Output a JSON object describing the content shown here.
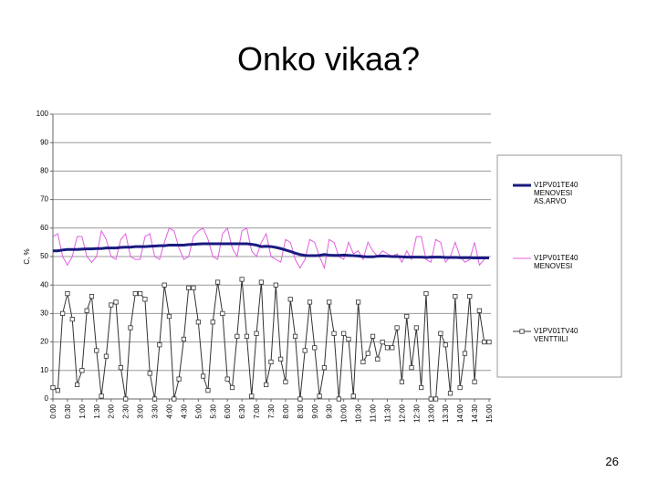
{
  "title": "Onko vikaa?",
  "page_number": "26",
  "chart_data": {
    "type": "line",
    "ylabel": "C, %",
    "ylim": [
      0,
      100
    ],
    "yticks": [
      0,
      10,
      20,
      30,
      40,
      50,
      60,
      70,
      80,
      90,
      100
    ],
    "grid": true,
    "categories": [
      "0:00",
      null,
      null,
      "0:30",
      null,
      null,
      "1:00",
      null,
      null,
      "1:30",
      null,
      null,
      "2:00",
      null,
      null,
      "2:30",
      null,
      null,
      "3:00",
      null,
      null,
      "3:30",
      null,
      null,
      "4:00",
      null,
      null,
      "4:30",
      null,
      null,
      "5:00",
      null,
      null,
      "5:30",
      null,
      null,
      "6:00",
      null,
      null,
      "6:30",
      null,
      null,
      "7:00",
      null,
      null,
      "7:30",
      null,
      null,
      "8:00",
      null,
      null,
      "8:30",
      null,
      null,
      "9:00",
      null,
      null,
      "9:30",
      null,
      null,
      "10:00",
      null,
      null,
      "10:30",
      null,
      null,
      "11:00",
      null,
      null,
      "11:30",
      null,
      null,
      "12:00",
      null,
      null,
      "12:30",
      null,
      null,
      "13:00",
      null,
      null,
      "13:30",
      null,
      null,
      "14:00",
      null,
      null,
      "14:30",
      null,
      null,
      "15:00"
    ],
    "series": [
      {
        "name": "V1PV01TE40 MENOVESI AS.ARVO",
        "color": "#1a1a80",
        "width": 3,
        "values": [
          52,
          52,
          52.3,
          52.5,
          52.5,
          52.5,
          52.6,
          52.7,
          52.7,
          52.8,
          52.8,
          53,
          53,
          53,
          53.2,
          53.3,
          53.3,
          53.5,
          53.5,
          53.5,
          53.6,
          53.7,
          53.8,
          53.8,
          54,
          54,
          54,
          54,
          54.2,
          54.3,
          54.4,
          54.5,
          54.5,
          54.5,
          54.5,
          54.5,
          54.5,
          54.5,
          54.5,
          54.5,
          54.5,
          54.3,
          54,
          53.5,
          53.6,
          53.5,
          53.2,
          52.8,
          52.3,
          51.8,
          51.2,
          50.7,
          50.4,
          50.3,
          50.3,
          50.4,
          50.7,
          50.5,
          50.4,
          50.4,
          50.5,
          50.4,
          50.3,
          50.2,
          50,
          49.9,
          49.9,
          50.1,
          50.2,
          50.1,
          50,
          50,
          49.9,
          49.8,
          49.8,
          49.8,
          49.8,
          49.7,
          49.8,
          49.8,
          49.8,
          49.7,
          49.7,
          49.7,
          49.6,
          49.6,
          49.6,
          49.5,
          49.5,
          49.5,
          49.5
        ]
      },
      {
        "name": "V1PV01TE40 MENOVESI",
        "color": "#e060e0",
        "width": 1,
        "values": [
          57,
          58,
          50,
          47,
          50,
          57,
          57,
          50,
          48,
          50,
          59,
          56,
          50,
          49,
          56,
          58,
          50,
          49,
          49,
          57,
          58,
          50,
          49,
          55,
          60,
          59,
          53,
          49,
          50,
          57,
          59,
          60,
          56,
          50,
          49,
          58,
          60,
          53,
          50,
          59,
          60,
          52,
          50,
          55,
          58,
          50,
          49,
          48,
          56,
          55,
          49,
          46,
          49,
          56,
          55,
          50,
          46,
          56,
          55,
          50,
          49,
          55,
          51,
          52,
          49,
          55,
          52,
          50,
          52,
          51,
          50,
          51,
          48,
          52,
          49,
          57,
          57,
          49,
          48,
          56,
          55,
          48,
          50,
          55,
          50,
          48,
          49,
          55,
          47,
          49,
          50
        ]
      },
      {
        "name": "V1PV01TV40 VENTTIILI",
        "color": "#333333",
        "width": 1,
        "marker": "square",
        "values": [
          4,
          3,
          30,
          37,
          28,
          5,
          10,
          31,
          36,
          17,
          1,
          15,
          33,
          34,
          11,
          0,
          25,
          37,
          37,
          35,
          9,
          0,
          19,
          40,
          29,
          0,
          7,
          21,
          39,
          39,
          27,
          8,
          3,
          27,
          41,
          30,
          7,
          4,
          22,
          42,
          22,
          1,
          23,
          41,
          5,
          13,
          40,
          14,
          6,
          35,
          22,
          0,
          17,
          34,
          18,
          1,
          11,
          34,
          23,
          0,
          23,
          21,
          1,
          34,
          13,
          16,
          22,
          14,
          20,
          18,
          18,
          25,
          6,
          29,
          11,
          25,
          4,
          37,
          0,
          0,
          23,
          19,
          2,
          36,
          4,
          16,
          36,
          6,
          31,
          20,
          20
        ]
      }
    ]
  }
}
